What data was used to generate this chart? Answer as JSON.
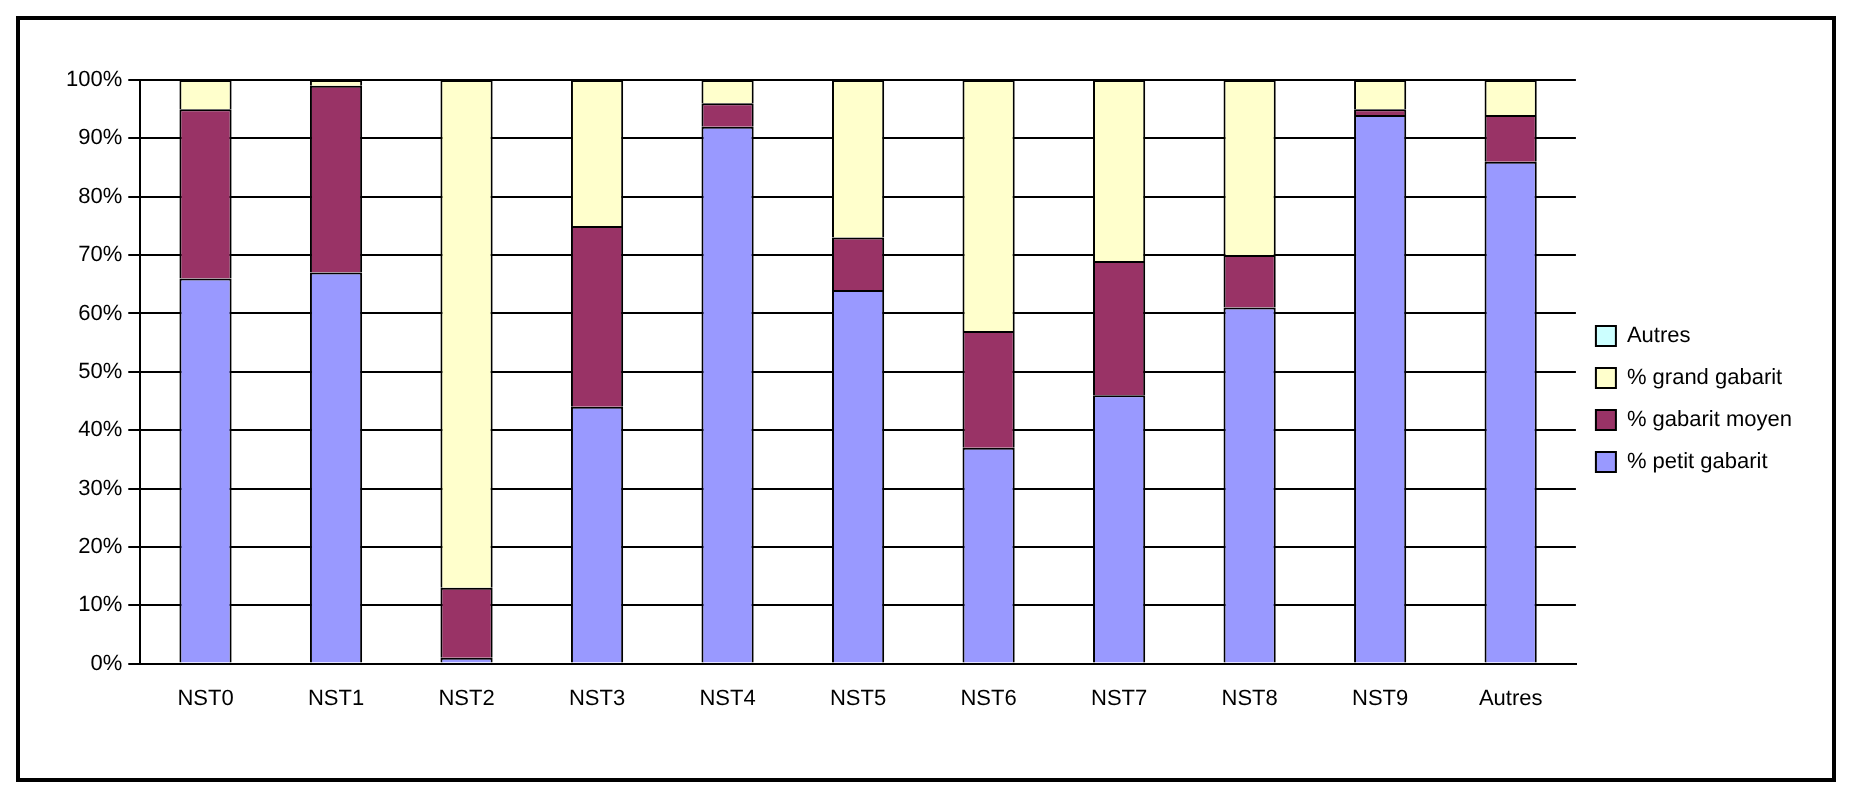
{
  "chart_data": {
    "type": "bar",
    "stacked": true,
    "categories": [
      "NST0",
      "NST1",
      "NST2",
      "NST3",
      "NST4",
      "NST5",
      "NST6",
      "NST7",
      "NST8",
      "NST9",
      "Autres"
    ],
    "series": [
      {
        "name": "% petit gabarit",
        "color": "#9999ff",
        "values": [
          66,
          67,
          1,
          44,
          92,
          64,
          37,
          46,
          61,
          94,
          86
        ]
      },
      {
        "name": "% gabarit moyen",
        "color": "#993366",
        "values": [
          29,
          32,
          12,
          31,
          4,
          9,
          20,
          23,
          9,
          1,
          8
        ]
      },
      {
        "name": "% grand gabarit",
        "color": "#ffffcc",
        "values": [
          5,
          1,
          87,
          25,
          4,
          27,
          43,
          31,
          30,
          5,
          6
        ]
      },
      {
        "name": "Autres",
        "color": "#ccffff",
        "values": [
          0,
          0,
          0,
          0,
          0,
          0,
          0,
          0,
          0,
          0,
          0
        ]
      }
    ],
    "ylim": [
      0,
      100
    ],
    "yticks": [
      {
        "value": 0,
        "label": "0%"
      },
      {
        "value": 10,
        "label": "10%"
      },
      {
        "value": 20,
        "label": "20%"
      },
      {
        "value": 30,
        "label": "30%"
      },
      {
        "value": 40,
        "label": "40%"
      },
      {
        "value": 50,
        "label": "50%"
      },
      {
        "value": 60,
        "label": "60%"
      },
      {
        "value": 70,
        "label": "70%"
      },
      {
        "value": 80,
        "label": "80%"
      },
      {
        "value": 90,
        "label": "90%"
      },
      {
        "value": 100,
        "label": "100%"
      }
    ],
    "grid": "y",
    "legend": "right"
  }
}
